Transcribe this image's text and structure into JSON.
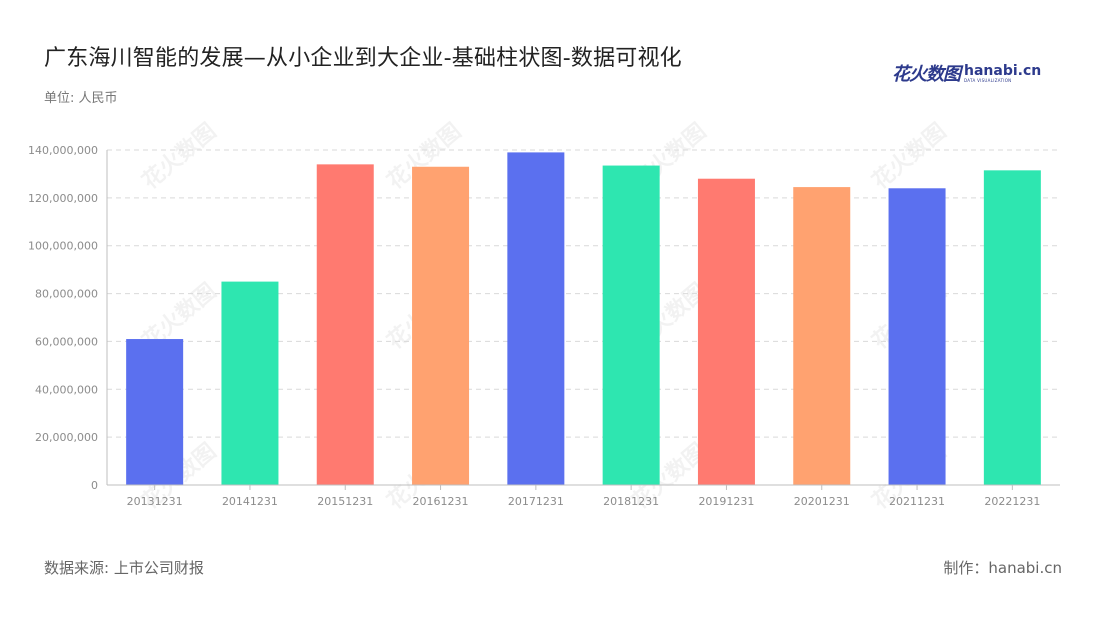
{
  "header": {
    "title": "广东海川智能的发展—从小企业到大企业-基础柱状图-数据可视化",
    "unit": "单位: 人民币"
  },
  "logo": {
    "cn": "花火数图",
    "en": "hanabi.cn",
    "sub": "DATA VISUALIZATION",
    "color": "#2d3a8c"
  },
  "footer": {
    "source": "数据来源: 上市公司财报",
    "credit": "制作：hanabi.cn"
  },
  "chart_data": {
    "type": "bar",
    "categories": [
      "20131231",
      "20141231",
      "20151231",
      "20161231",
      "20171231",
      "20181231",
      "20191231",
      "20201231",
      "20211231",
      "20221231"
    ],
    "values": [
      61000000,
      85000000,
      134000000,
      133000000,
      139000000,
      133500000,
      128000000,
      124500000,
      124000000,
      131500000
    ],
    "bar_colors": [
      "#5b70ef",
      "#2ee6b0",
      "#ff7a70",
      "#ffa270",
      "#5b70ef",
      "#2ee6b0",
      "#ff7a70",
      "#ffa270",
      "#5b70ef",
      "#2ee6b0"
    ],
    "ylim": [
      0,
      140000000
    ],
    "yticks": [
      0,
      20000000,
      40000000,
      60000000,
      80000000,
      100000000,
      120000000,
      140000000
    ],
    "ytick_labels": [
      "0",
      "20,000,000",
      "40,000,000",
      "60,000,000",
      "80,000,000",
      "100,000,000",
      "120,000,000",
      "140,000,000"
    ],
    "grid": "horizontal-dashed",
    "legend": "none",
    "title": "",
    "xlabel": "",
    "ylabel": ""
  }
}
